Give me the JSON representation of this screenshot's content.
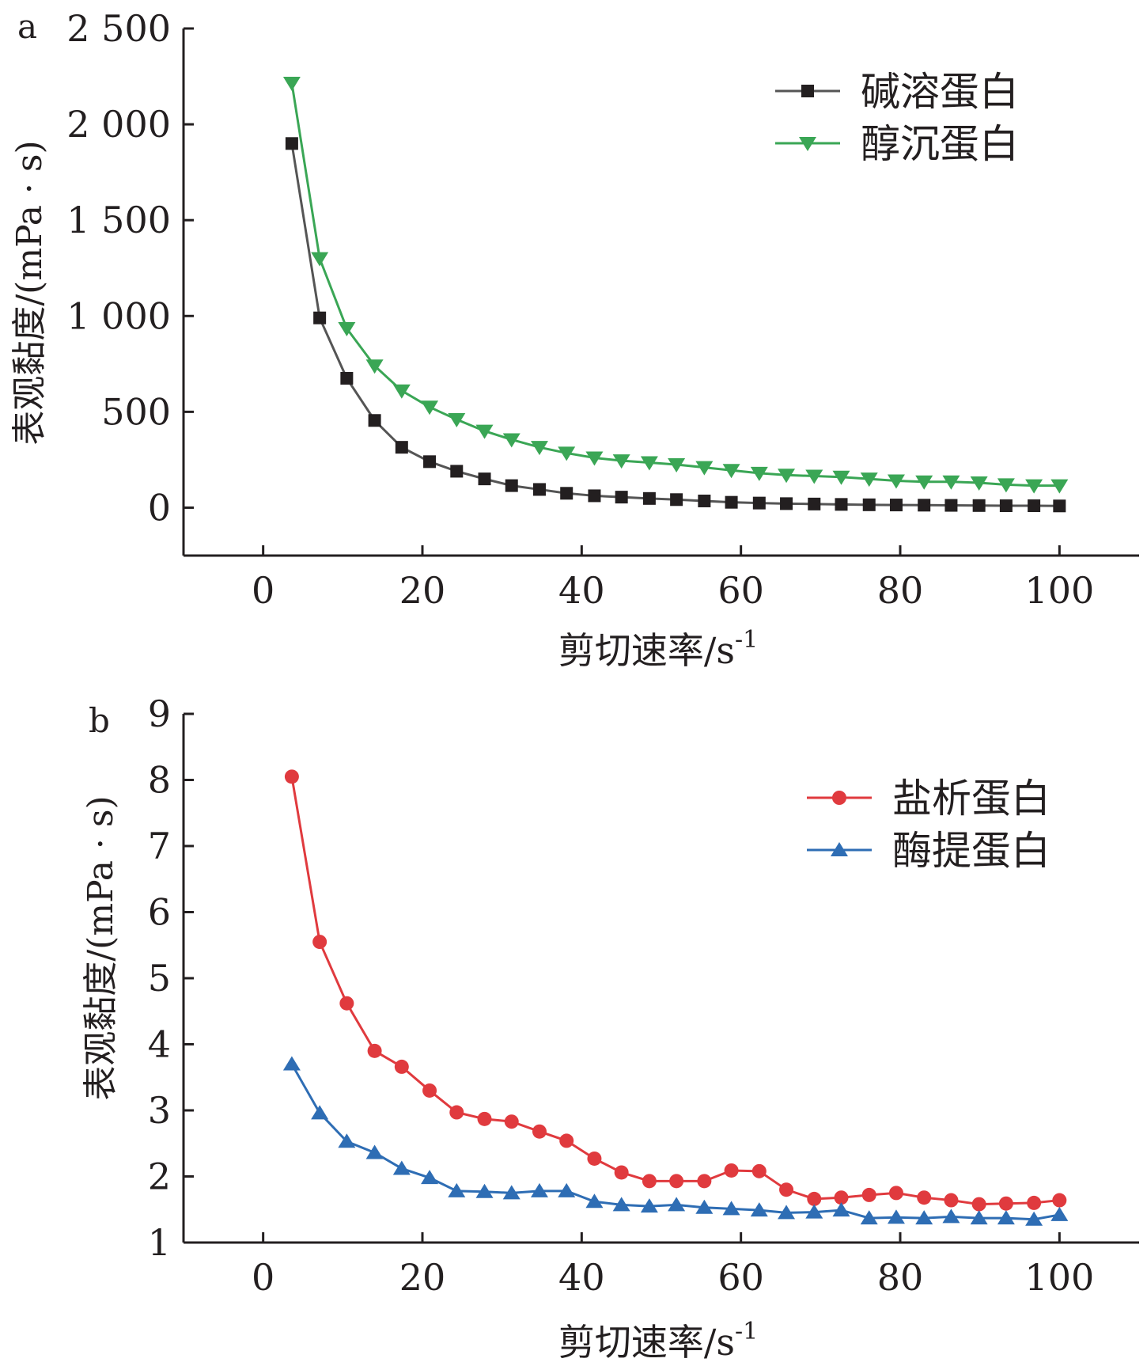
{
  "chart_data": [
    {
      "panel_label": "a",
      "type": "line",
      "xlabel": "剪切速率/s",
      "xlabel_sup": "-1",
      "ylabel": "表观黏度/(mPa · s)",
      "xlim": [
        -10,
        110
      ],
      "ylim": [
        -250,
        2500
      ],
      "x_ticks": [
        0,
        20,
        40,
        60,
        80,
        100
      ],
      "y_ticks": [
        0,
        500,
        1000,
        1500,
        2000,
        2500
      ],
      "x_tick_labels": [
        "0",
        "20",
        "40",
        "60",
        "80",
        "100"
      ],
      "y_tick_labels": [
        "0",
        "500",
        "1 000",
        "1 500",
        "2 000",
        "2 500"
      ],
      "legend_position": "top-right",
      "x": [
        3.6,
        7.1,
        10.5,
        14,
        17.4,
        20.9,
        24.3,
        27.8,
        31.2,
        34.7,
        38.1,
        41.6,
        45,
        48.5,
        51.9,
        55.4,
        58.8,
        62.3,
        65.7,
        69.2,
        72.6,
        76.1,
        79.5,
        83,
        86.4,
        89.9,
        93.3,
        96.8,
        100
      ],
      "series": [
        {
          "name": "碱溶蛋白",
          "color": "#231f20",
          "line_color": "#555555",
          "marker": "square",
          "values": [
            1900,
            990,
            675,
            455,
            315,
            240,
            190,
            150,
            115,
            95,
            75,
            62,
            55,
            48,
            42,
            35,
            28,
            24,
            21,
            19,
            17,
            15,
            14,
            13,
            12,
            11,
            10,
            10,
            9
          ]
        },
        {
          "name": "醇沉蛋白",
          "color": "#3aa655",
          "line_color": "#3aa655",
          "marker": "triangle-down",
          "values": [
            2215,
            1300,
            935,
            740,
            610,
            525,
            460,
            400,
            355,
            315,
            285,
            260,
            245,
            235,
            225,
            210,
            195,
            180,
            170,
            165,
            160,
            150,
            140,
            135,
            135,
            130,
            120,
            115,
            115
          ]
        }
      ]
    },
    {
      "panel_label": "b",
      "type": "line",
      "xlabel": "剪切速率/s",
      "xlabel_sup": "-1",
      "ylabel": "表观黏度/(mPa · s)",
      "xlim": [
        -10,
        110
      ],
      "ylim": [
        1,
        9
      ],
      "x_ticks": [
        0,
        20,
        40,
        60,
        80,
        100
      ],
      "y_ticks": [
        1,
        2,
        3,
        4,
        5,
        6,
        7,
        8,
        9
      ],
      "x_tick_labels": [
        "0",
        "20",
        "40",
        "60",
        "80",
        "100"
      ],
      "y_tick_labels": [
        "1",
        "2",
        "3",
        "4",
        "5",
        "6",
        "7",
        "8",
        "9"
      ],
      "legend_position": "top-right",
      "x": [
        3.6,
        7.1,
        10.5,
        14,
        17.4,
        20.9,
        24.3,
        27.8,
        31.2,
        34.7,
        38.1,
        41.6,
        45,
        48.5,
        51.9,
        55.4,
        58.8,
        62.3,
        65.7,
        69.2,
        72.6,
        76.1,
        79.5,
        83,
        86.4,
        89.9,
        93.3,
        96.8,
        100
      ],
      "series": [
        {
          "name": "盐析蛋白",
          "color": "#e03a3e",
          "line_color": "#e03a3e",
          "marker": "circle",
          "values": [
            8.05,
            5.55,
            4.62,
            3.9,
            3.66,
            3.3,
            2.97,
            2.87,
            2.83,
            2.68,
            2.54,
            2.27,
            2.06,
            1.93,
            1.93,
            1.93,
            2.09,
            2.08,
            1.8,
            1.66,
            1.68,
            1.72,
            1.75,
            1.68,
            1.64,
            1.58,
            1.59,
            1.6,
            1.64
          ]
        },
        {
          "name": "酶提蛋白",
          "color": "#2e6db4",
          "line_color": "#2e6db4",
          "marker": "triangle-up",
          "values": [
            3.7,
            2.96,
            2.53,
            2.36,
            2.12,
            1.98,
            1.78,
            1.77,
            1.75,
            1.78,
            1.78,
            1.62,
            1.57,
            1.55,
            1.57,
            1.53,
            1.51,
            1.49,
            1.45,
            1.46,
            1.49,
            1.37,
            1.38,
            1.37,
            1.39,
            1.37,
            1.37,
            1.35,
            1.42
          ]
        }
      ]
    }
  ]
}
